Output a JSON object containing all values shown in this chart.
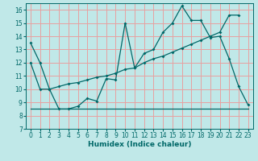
{
  "xlabel": "Humidex (Indice chaleur)",
  "bg_color": "#c0e8e8",
  "grid_color": "#e8a0a0",
  "line_color": "#006868",
  "xlim": [
    -0.5,
    23.5
  ],
  "ylim": [
    7,
    16.5
  ],
  "yticks": [
    7,
    8,
    9,
    10,
    11,
    12,
    13,
    14,
    15,
    16
  ],
  "xticks": [
    0,
    1,
    2,
    3,
    4,
    5,
    6,
    7,
    8,
    9,
    10,
    11,
    12,
    13,
    14,
    15,
    16,
    17,
    18,
    19,
    20,
    21,
    22,
    23
  ],
  "line1_x": [
    0,
    1,
    2,
    3,
    4,
    5,
    6,
    7,
    8,
    9,
    10,
    11,
    12,
    13,
    14,
    15,
    16,
    17,
    18,
    19,
    20,
    21,
    22,
    23
  ],
  "line1_y": [
    13.5,
    12.0,
    10.0,
    8.5,
    8.5,
    8.7,
    9.3,
    9.1,
    10.8,
    10.7,
    15.0,
    11.6,
    12.7,
    13.0,
    14.3,
    15.0,
    16.3,
    15.2,
    15.2,
    13.9,
    14.0,
    12.3,
    10.2,
    8.8
  ],
  "line2_x": [
    0,
    1,
    2,
    3,
    4,
    5,
    6,
    7,
    8,
    9,
    10,
    11,
    12,
    13,
    14,
    15,
    16,
    17,
    18,
    19,
    20,
    21,
    22
  ],
  "line2_y": [
    12.0,
    10.0,
    10.0,
    10.2,
    10.4,
    10.5,
    10.7,
    10.9,
    11.0,
    11.2,
    11.5,
    11.6,
    12.0,
    12.3,
    12.5,
    12.8,
    13.1,
    13.4,
    13.7,
    14.0,
    14.3,
    15.6,
    15.6
  ],
  "line3_x": [
    0,
    1,
    2,
    3,
    4,
    5,
    6,
    7,
    8,
    9,
    10,
    11,
    12,
    13,
    14,
    15,
    16,
    17,
    18,
    19,
    20,
    21,
    22,
    23
  ],
  "line3_y": [
    8.5,
    8.5,
    8.5,
    8.5,
    8.5,
    8.5,
    8.5,
    8.5,
    8.5,
    8.5,
    8.5,
    8.5,
    8.5,
    8.5,
    8.5,
    8.5,
    8.5,
    8.5,
    8.5,
    8.5,
    8.5,
    8.5,
    8.5,
    8.5
  ]
}
